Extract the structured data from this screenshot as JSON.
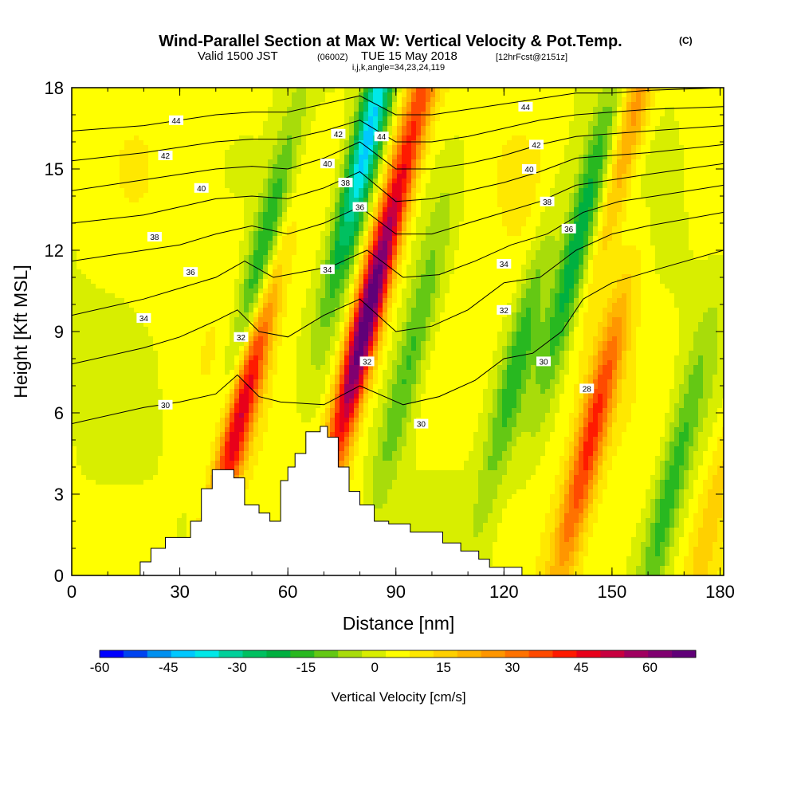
{
  "title": {
    "main": "Wind-Parallel Section at Max W: Vertical Velocity & Pot.Temp.",
    "copyright": "(C)",
    "valid_a": "Valid 1500 JST",
    "valid_zulu": "(0600Z)",
    "valid_b": "TUE 15 May 2018",
    "forecast": "[12hrFcst@2151z]",
    "params": "i,j,k,angle=34,23,24,119"
  },
  "chart_data": {
    "type": "heatmap",
    "xlabel": "Distance [nm]",
    "ylabel": "Height [Kft MSL]",
    "xlim": [
      0,
      181
    ],
    "ylim": [
      0,
      18
    ],
    "x_ticks": [
      "0",
      "30",
      "60",
      "90",
      "120",
      "150",
      "180"
    ],
    "y_ticks": [
      "0",
      "3",
      "6",
      "9",
      "12",
      "15",
      "18"
    ],
    "colorbar": {
      "label": "Vertical Velocity [cm/s]",
      "range": [
        -60,
        70
      ],
      "tick_labels": [
        "-60",
        "-45",
        "-30",
        "-15",
        "0",
        "15",
        "30",
        "45",
        "60"
      ],
      "colors": [
        "#0000ff",
        "#0044f0",
        "#0090f0",
        "#00c8ff",
        "#00e8e8",
        "#00d09a",
        "#00c060",
        "#00b040",
        "#28b820",
        "#64c814",
        "#a8dc0a",
        "#d8ee00",
        "#ffff00",
        "#ffe800",
        "#ffd000",
        "#ffb400",
        "#ff9600",
        "#ff7200",
        "#ff4a00",
        "#ff1a00",
        "#e8001a",
        "#c80040",
        "#a00060",
        "#800070",
        "#600078"
      ]
    },
    "updrafts": [
      {
        "x": 47,
        "z": 6.2,
        "w": 48
      },
      {
        "x": 81,
        "z": 9.0,
        "w": 66
      },
      {
        "x": 96,
        "z": 17.0,
        "w": 28
      },
      {
        "x": 144,
        "z": 5.0,
        "w": 35
      },
      {
        "x": 156,
        "z": 17.0,
        "w": 24
      },
      {
        "x": 179,
        "z": 3.0,
        "w": 12
      }
    ],
    "downdrafts": [
      {
        "x": 52,
        "z": 11.0,
        "w": -30
      },
      {
        "x": 82,
        "z": 16.0,
        "w": -45
      },
      {
        "x": 94,
        "z": 8.0,
        "w": -18
      },
      {
        "x": 124,
        "z": 8.0,
        "w": -20
      },
      {
        "x": 140,
        "z": 12.0,
        "w": -28
      },
      {
        "x": 166,
        "z": 3.0,
        "w": -20
      }
    ],
    "terrain": [
      [
        19,
        0
      ],
      [
        19,
        0.5
      ],
      [
        22,
        0.5
      ],
      [
        22,
        1
      ],
      [
        26,
        1
      ],
      [
        26,
        1.4
      ],
      [
        33,
        1.4
      ],
      [
        33,
        2
      ],
      [
        36,
        2
      ],
      [
        36,
        3.2
      ],
      [
        39,
        3.2
      ],
      [
        39,
        3.9
      ],
      [
        45,
        3.9
      ],
      [
        45,
        3.6
      ],
      [
        48,
        3.6
      ],
      [
        48,
        2.6
      ],
      [
        52,
        2.6
      ],
      [
        52,
        2.3
      ],
      [
        55,
        2.3
      ],
      [
        55,
        2
      ],
      [
        58,
        2
      ],
      [
        58,
        3.5
      ],
      [
        60,
        3.5
      ],
      [
        60,
        4
      ],
      [
        62,
        4
      ],
      [
        62,
        4.5
      ],
      [
        65,
        4.5
      ],
      [
        65,
        5.3
      ],
      [
        69,
        5.3
      ],
      [
        69,
        5.5
      ],
      [
        71,
        5.5
      ],
      [
        71,
        5.1
      ],
      [
        74,
        5.1
      ],
      [
        74,
        4
      ],
      [
        77,
        4
      ],
      [
        77,
        3.1
      ],
      [
        80,
        3.1
      ],
      [
        80,
        2.6
      ],
      [
        84,
        2.6
      ],
      [
        84,
        2
      ],
      [
        88,
        2
      ],
      [
        88,
        1.9
      ],
      [
        94,
        1.9
      ],
      [
        94,
        1.6
      ],
      [
        103,
        1.6
      ],
      [
        103,
        1.2
      ],
      [
        108,
        1.2
      ],
      [
        108,
        0.9
      ],
      [
        113,
        0.9
      ],
      [
        113,
        0.6
      ],
      [
        116,
        0.6
      ],
      [
        116,
        0.3
      ],
      [
        125,
        0.3
      ],
      [
        125,
        0
      ]
    ],
    "theta_contours": [
      {
        "label": "30",
        "points": [
          [
            0,
            5.6
          ],
          [
            20,
            6.2
          ],
          [
            30,
            6.4
          ],
          [
            40,
            6.7
          ],
          [
            46,
            7.4
          ],
          [
            52,
            6.6
          ],
          [
            58,
            6.4
          ],
          [
            70,
            6.3
          ],
          [
            80,
            7.0
          ],
          [
            92,
            6.3
          ],
          [
            102,
            6.6
          ],
          [
            112,
            7.2
          ],
          [
            120,
            8.0
          ],
          [
            128,
            8.2
          ],
          [
            136,
            9.0
          ],
          [
            142,
            10.2
          ],
          [
            150,
            10.8
          ],
          [
            160,
            11.2
          ],
          [
            181,
            12.0
          ]
        ]
      },
      {
        "label": "32",
        "points": [
          [
            0,
            7.8
          ],
          [
            20,
            8.4
          ],
          [
            30,
            8.8
          ],
          [
            40,
            9.4
          ],
          [
            46,
            9.8
          ],
          [
            52,
            9.0
          ],
          [
            60,
            8.8
          ],
          [
            70,
            9.6
          ],
          [
            80,
            10.2
          ],
          [
            90,
            9.0
          ],
          [
            100,
            9.2
          ],
          [
            110,
            9.8
          ],
          [
            120,
            10.8
          ],
          [
            130,
            11.0
          ],
          [
            140,
            12.0
          ],
          [
            150,
            12.6
          ],
          [
            160,
            12.9
          ],
          [
            181,
            13.4
          ]
        ]
      },
      {
        "label": "34",
        "points": [
          [
            0,
            9.6
          ],
          [
            20,
            10.2
          ],
          [
            30,
            10.6
          ],
          [
            40,
            11.0
          ],
          [
            48,
            11.6
          ],
          [
            56,
            11.0
          ],
          [
            64,
            11.2
          ],
          [
            72,
            11.4
          ],
          [
            82,
            12.0
          ],
          [
            92,
            11.0
          ],
          [
            102,
            11.1
          ],
          [
            112,
            11.6
          ],
          [
            122,
            12.2
          ],
          [
            132,
            12.6
          ],
          [
            142,
            13.4
          ],
          [
            152,
            13.8
          ],
          [
            162,
            14.0
          ],
          [
            181,
            14.4
          ]
        ]
      },
      {
        "label": "36",
        "points": [
          [
            0,
            11.6
          ],
          [
            20,
            12.0
          ],
          [
            30,
            12.2
          ],
          [
            40,
            12.6
          ],
          [
            50,
            12.9
          ],
          [
            60,
            12.6
          ],
          [
            70,
            13.0
          ],
          [
            80,
            13.6
          ],
          [
            90,
            12.6
          ],
          [
            100,
            12.6
          ],
          [
            110,
            13.0
          ],
          [
            120,
            13.4
          ],
          [
            130,
            13.8
          ],
          [
            140,
            14.4
          ],
          [
            150,
            14.6
          ],
          [
            160,
            14.8
          ],
          [
            181,
            15.2
          ]
        ]
      },
      {
        "label": "38",
        "points": [
          [
            0,
            13.0
          ],
          [
            20,
            13.3
          ],
          [
            30,
            13.6
          ],
          [
            40,
            13.9
          ],
          [
            50,
            14.0
          ],
          [
            60,
            13.9
          ],
          [
            70,
            14.3
          ],
          [
            80,
            14.9
          ],
          [
            90,
            13.8
          ],
          [
            100,
            13.9
          ],
          [
            110,
            14.2
          ],
          [
            120,
            14.5
          ],
          [
            130,
            14.9
          ],
          [
            140,
            15.4
          ],
          [
            150,
            15.5
          ],
          [
            160,
            15.6
          ],
          [
            181,
            15.9
          ]
        ]
      },
      {
        "label": "40",
        "points": [
          [
            0,
            14.2
          ],
          [
            20,
            14.6
          ],
          [
            30,
            14.8
          ],
          [
            40,
            15.0
          ],
          [
            50,
            15.1
          ],
          [
            60,
            15.0
          ],
          [
            70,
            15.4
          ],
          [
            80,
            16.0
          ],
          [
            90,
            15.0
          ],
          [
            100,
            15.0
          ],
          [
            110,
            15.2
          ],
          [
            120,
            15.5
          ],
          [
            130,
            15.9
          ],
          [
            140,
            16.2
          ],
          [
            150,
            16.3
          ],
          [
            160,
            16.4
          ],
          [
            181,
            16.6
          ]
        ]
      },
      {
        "label": "42",
        "points": [
          [
            0,
            15.3
          ],
          [
            20,
            15.6
          ],
          [
            30,
            15.8
          ],
          [
            40,
            16.0
          ],
          [
            50,
            16.1
          ],
          [
            60,
            16.1
          ],
          [
            70,
            16.4
          ],
          [
            80,
            16.8
          ],
          [
            90,
            16.0
          ],
          [
            100,
            16.0
          ],
          [
            110,
            16.2
          ],
          [
            120,
            16.5
          ],
          [
            130,
            16.8
          ],
          [
            140,
            17.0
          ],
          [
            150,
            17.1
          ],
          [
            160,
            17.2
          ],
          [
            181,
            17.3
          ]
        ]
      },
      {
        "label": "44",
        "points": [
          [
            0,
            16.4
          ],
          [
            20,
            16.6
          ],
          [
            30,
            16.8
          ],
          [
            40,
            17.0
          ],
          [
            50,
            17.1
          ],
          [
            60,
            17.1
          ],
          [
            70,
            17.4
          ],
          [
            80,
            17.7
          ],
          [
            90,
            17.0
          ],
          [
            100,
            17.0
          ],
          [
            110,
            17.2
          ],
          [
            120,
            17.4
          ],
          [
            130,
            17.6
          ],
          [
            140,
            17.8
          ],
          [
            150,
            17.8
          ],
          [
            160,
            17.9
          ],
          [
            181,
            18.0
          ]
        ]
      }
    ],
    "contour_labels": [
      {
        "text": "44",
        "x": 29,
        "z": 16.8
      },
      {
        "text": "42",
        "x": 26,
        "z": 15.5
      },
      {
        "text": "40",
        "x": 36,
        "z": 14.3
      },
      {
        "text": "38",
        "x": 23,
        "z": 12.5
      },
      {
        "text": "36",
        "x": 33,
        "z": 11.2
      },
      {
        "text": "34",
        "x": 20,
        "z": 9.5
      },
      {
        "text": "32",
        "x": 47,
        "z": 8.8
      },
      {
        "text": "30",
        "x": 26,
        "z": 6.3
      },
      {
        "text": "42",
        "x": 74,
        "z": 16.3
      },
      {
        "text": "44",
        "x": 86,
        "z": 16.2
      },
      {
        "text": "40",
        "x": 71,
        "z": 15.2
      },
      {
        "text": "38",
        "x": 76,
        "z": 14.5
      },
      {
        "text": "36",
        "x": 80,
        "z": 13.6
      },
      {
        "text": "34",
        "x": 71,
        "z": 11.3
      },
      {
        "text": "32",
        "x": 82,
        "z": 7.9
      },
      {
        "text": "30",
        "x": 97,
        "z": 5.6
      },
      {
        "text": "44",
        "x": 126,
        "z": 17.3
      },
      {
        "text": "42",
        "x": 129,
        "z": 15.9
      },
      {
        "text": "40",
        "x": 127,
        "z": 15.0
      },
      {
        "text": "38",
        "x": 132,
        "z": 13.8
      },
      {
        "text": "36",
        "x": 138,
        "z": 12.8
      },
      {
        "text": "34",
        "x": 120,
        "z": 11.5
      },
      {
        "text": "32",
        "x": 120,
        "z": 9.8
      },
      {
        "text": "30",
        "x": 131,
        "z": 7.9
      },
      {
        "text": "28",
        "x": 143,
        "z": 6.9
      }
    ]
  }
}
